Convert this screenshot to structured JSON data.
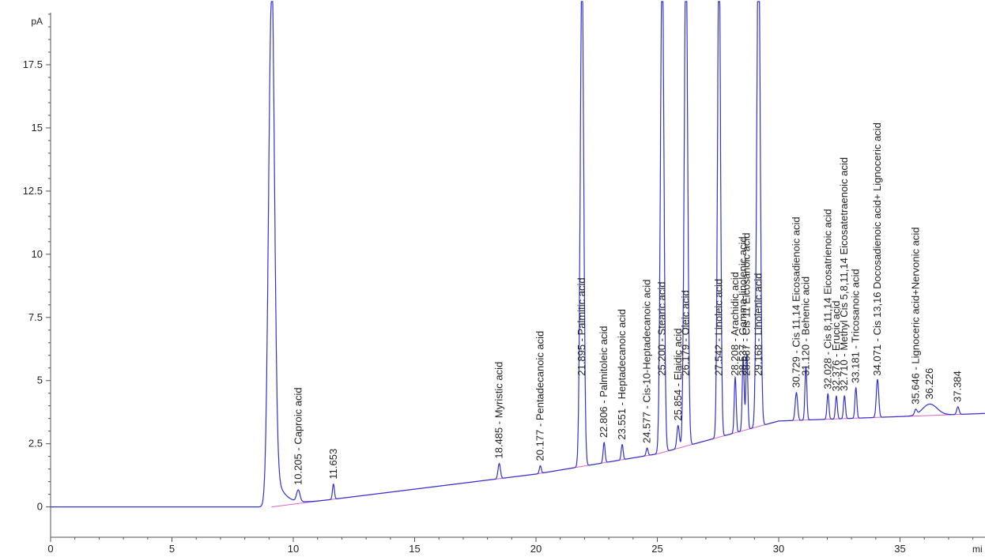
{
  "chart_data": {
    "type": "line",
    "title": "",
    "y_unit_label": "pA",
    "x_unit_label": "mi",
    "xlim": [
      0,
      38.5
    ],
    "ylim": [
      -1.2,
      19.5
    ],
    "x_ticks": [
      0,
      5,
      10,
      15,
      20,
      25,
      30,
      35
    ],
    "y_ticks": [
      0,
      2.5,
      5,
      7.5,
      10,
      12.5,
      15,
      17.5
    ],
    "x_tick_labels": [
      "0",
      "5",
      "10",
      "15",
      "20",
      "25",
      "30",
      "35"
    ],
    "y_tick_labels": [
      "0",
      "2.5",
      "5",
      "7.5",
      "10",
      "12.5",
      "15",
      "17.5"
    ],
    "colors": {
      "signal": "#3333cc",
      "baseline": "#e060c0",
      "axis": "#555555"
    },
    "baseline_points": [
      [
        9.1,
        0.0
      ],
      [
        20,
        1.3
      ],
      [
        25,
        2.1
      ],
      [
        30,
        3.4
      ],
      [
        38.5,
        3.7
      ]
    ],
    "peaks": [
      {
        "rt": 9.1,
        "height": 20.0,
        "width": 0.12,
        "label": ""
      },
      {
        "rt": 10.205,
        "height": 0.45,
        "width": 0.07,
        "label": "10.205 -  Caproic acid"
      },
      {
        "rt": 11.653,
        "height": 0.6,
        "width": 0.04,
        "label": "11.653"
      },
      {
        "rt": 18.485,
        "height": 0.6,
        "width": 0.05,
        "label": "18.485 -  Myristic acid"
      },
      {
        "rt": 20.177,
        "height": 0.3,
        "width": 0.04,
        "label": "20.177 -  Pentadecanoic acid"
      },
      {
        "rt": 21.895,
        "height": 20.0,
        "width": 0.07,
        "label": "21.895 -  Palmitic acid"
      },
      {
        "rt": 22.806,
        "height": 0.8,
        "width": 0.04,
        "label": "22.806 -  Palmitoleic acid"
      },
      {
        "rt": 23.551,
        "height": 0.6,
        "width": 0.04,
        "label": "23.551 -  Heptadecanoic acid"
      },
      {
        "rt": 24.577,
        "height": 0.3,
        "width": 0.04,
        "label": "24.577 -  Cis-10-Heptadecanoic acid"
      },
      {
        "rt": 25.2,
        "height": 20.0,
        "width": 0.07,
        "label": "25.200 -  Stearic acid"
      },
      {
        "rt": 25.854,
        "height": 0.9,
        "width": 0.05,
        "label": "25.854 -  Elaidic acid"
      },
      {
        "rt": 26.179,
        "height": 20.0,
        "width": 0.07,
        "label": "26.179 -  Oleic acid"
      },
      {
        "rt": 27.542,
        "height": 20.0,
        "width": 0.06,
        "label": "27.542 -  Linoleic acid"
      },
      {
        "rt": 28.208,
        "height": 2.2,
        "width": 0.04,
        "label": "28.208 -  Arachidic acid"
      },
      {
        "rt": 28.537,
        "height": 2.9,
        "width": 0.04,
        "label": "28.537 -  Gamma-linolenic acid"
      },
      {
        "rt": 28.687,
        "height": 3.0,
        "width": 0.04,
        "label": "28.687 -  Cis 11 Eicosanoic acid"
      },
      {
        "rt": 29.168,
        "height": 20.0,
        "width": 0.07,
        "label": "29.168 -  Linolenic acid"
      },
      {
        "rt": 30.729,
        "height": 1.1,
        "width": 0.05,
        "label": "30.729 -  Cis 11,14 Eicosadienoic acid"
      },
      {
        "rt": 31.12,
        "height": 2.1,
        "width": 0.04,
        "label": "31.120 -  Behenic acid"
      },
      {
        "rt": 32.028,
        "height": 1.0,
        "width": 0.04,
        "label": "32.028 -  Cis 8,11,14 Eicosatrienoic acid"
      },
      {
        "rt": 32.376,
        "height": 0.9,
        "width": 0.04,
        "label": "32.376 -  Erucic acid"
      },
      {
        "rt": 32.71,
        "height": 0.9,
        "width": 0.04,
        "label": "32.710 -  Methyl Cis 5,8,11,14 Eicosatetraenoic acid"
      },
      {
        "rt": 33.181,
        "height": 1.2,
        "width": 0.04,
        "label": "33.181 -  Tricosanoic acid"
      },
      {
        "rt": 34.071,
        "height": 1.5,
        "width": 0.05,
        "label": "34.071 -  Cis 13,16 Docosadienoic acid+ Lignoceric acid"
      },
      {
        "rt": 35.646,
        "height": 0.2,
        "width": 0.05,
        "label": "35.646 -  Lignoceric acid+Nervonic acid"
      },
      {
        "rt": 36.226,
        "height": 0.45,
        "width": 0.3,
        "label": "36.226"
      },
      {
        "rt": 37.384,
        "height": 0.3,
        "width": 0.05,
        "label": "37.384"
      }
    ]
  }
}
